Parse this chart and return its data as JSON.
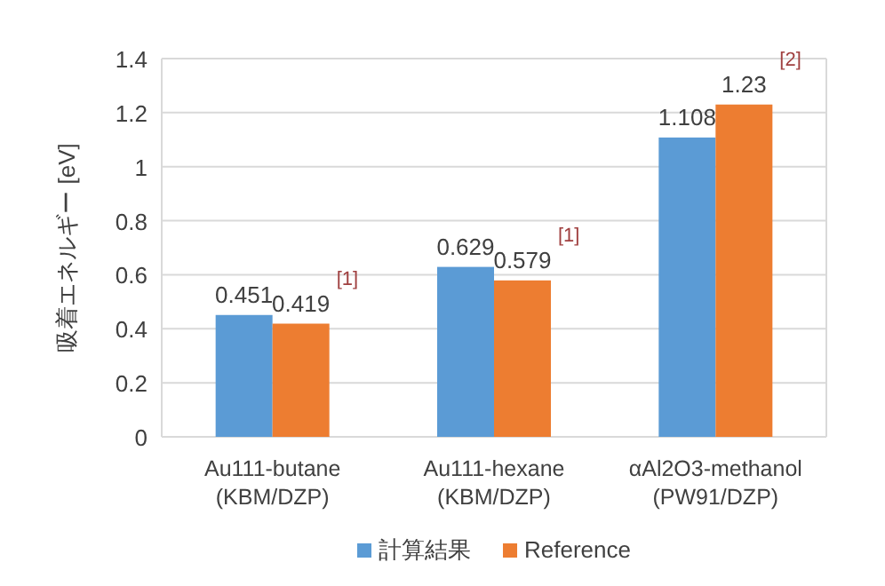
{
  "chart_data": {
    "type": "bar",
    "ylabel": "吸着エネルギー [eV]",
    "categories": [
      "Au111-butane\n(KBM/DZP)",
      "Au111-hexane\n(KBM/DZP)",
      "αAl2O3-methanol\n(PW91/DZP)"
    ],
    "series": [
      {
        "name": "計算結果",
        "color": "#5b9bd5",
        "values": [
          0.451,
          0.629,
          1.108
        ]
      },
      {
        "name": "Reference",
        "color": "#ed7d31",
        "values": [
          0.419,
          0.579,
          1.23
        ]
      }
    ],
    "ylim": [
      0,
      1.4
    ],
    "yticks": [
      0,
      0.2,
      0.4,
      0.6,
      0.8,
      1,
      1.2,
      1.4
    ],
    "grid": "y",
    "legend": "bottom",
    "data_labels": true,
    "annotations": [
      "[1]",
      "[1]",
      "[2]"
    ]
  }
}
